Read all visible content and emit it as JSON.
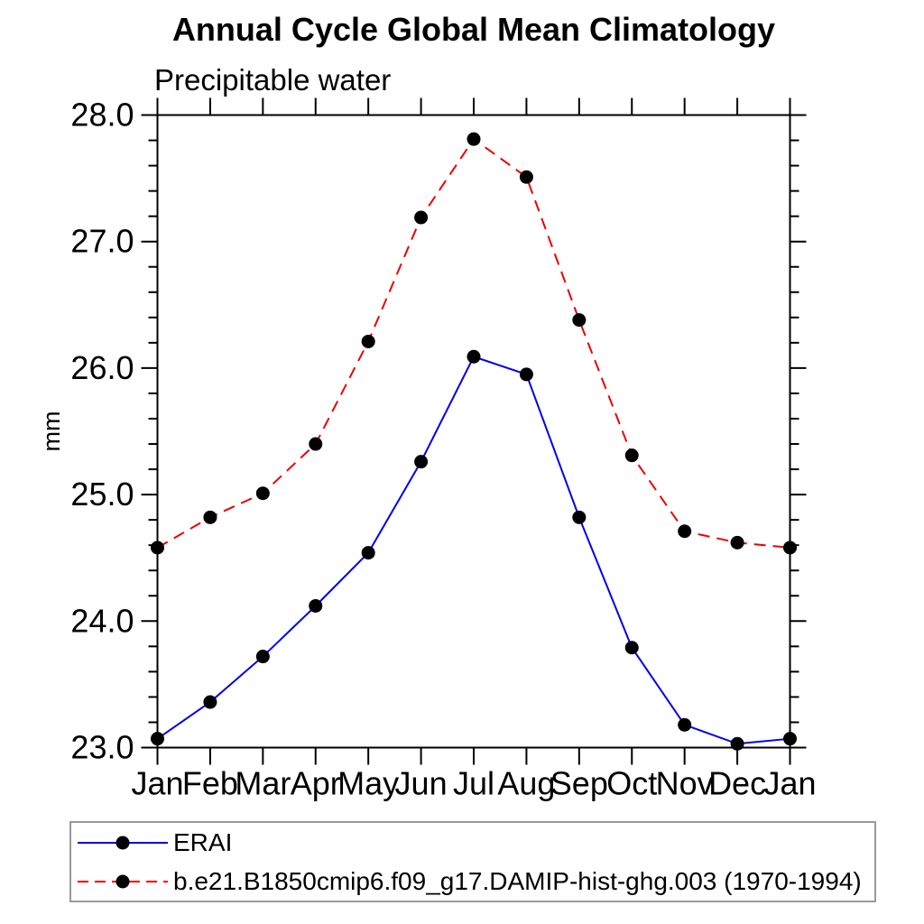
{
  "chart_data": {
    "type": "line",
    "title": "Annual Cycle Global Mean Climatology",
    "subtitle": "Precipitable water",
    "ylabel": "mm",
    "categories": [
      "Jan",
      "Feb",
      "Mar",
      "Apr",
      "May",
      "Jun",
      "Jul",
      "Aug",
      "Sep",
      "Oct",
      "Nov",
      "Dec",
      "Jan"
    ],
    "ylim": [
      23.0,
      28.0
    ],
    "ytick_step": 1.0,
    "yminor_step": 0.2,
    "ytick_labels": [
      "23.0",
      "24.0",
      "25.0",
      "26.0",
      "27.0",
      "28.0"
    ],
    "grid": false,
    "legend_position": "bottom-left-box",
    "series": [
      {
        "name": "ERAI",
        "color": "#0000ee",
        "line_style": "solid",
        "marker": "filled-circle",
        "marker_color": "#000000",
        "values": [
          23.07,
          23.36,
          23.72,
          24.12,
          24.54,
          25.26,
          26.09,
          25.95,
          24.82,
          23.79,
          23.18,
          23.03,
          23.07
        ]
      },
      {
        "name": "b.e21.B1850cmip6.f09_g17.DAMIP-hist-ghg.003 (1970-1994)",
        "color": "#ee0000",
        "line_style": "dashed",
        "marker": "filled-circle",
        "marker_color": "#000000",
        "values": [
          24.58,
          24.82,
          25.01,
          25.4,
          26.21,
          27.19,
          27.81,
          27.51,
          26.38,
          25.31,
          24.71,
          24.62,
          24.58
        ]
      }
    ]
  },
  "colors": {
    "axis": "#000000",
    "text": "#000000",
    "erai_line": "#0000ee",
    "ghg_line": "#ee0000",
    "marker": "#000000",
    "legend_border": "#9a9a9a",
    "background": "#ffffff"
  }
}
